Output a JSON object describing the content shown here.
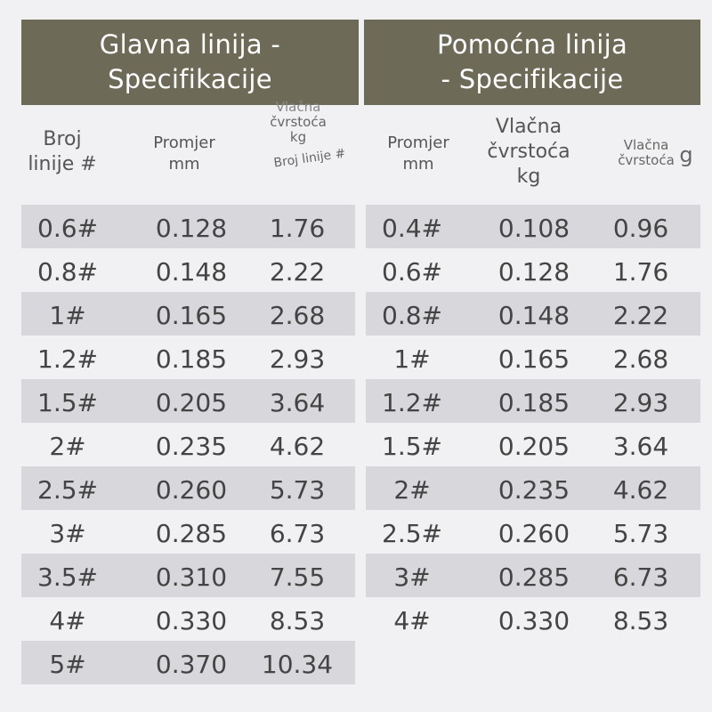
{
  "main_table": {
    "title_line1": "Glavna linija -",
    "title_line2": "Specifikacije",
    "headers": {
      "line_no": [
        "Broj",
        "linije #"
      ],
      "diameter": [
        "Promjer",
        "mm"
      ],
      "strength": [
        "Vlačna",
        "čvrstoća",
        "kg"
      ],
      "strength_extra": "Broj linije #"
    },
    "rows": [
      {
        "line": "0.6#",
        "diameter": "0.128",
        "strength": "1.76"
      },
      {
        "line": "0.8#",
        "diameter": "0.148",
        "strength": "2.22"
      },
      {
        "line": "1#",
        "diameter": "0.165",
        "strength": "2.68"
      },
      {
        "line": "1.2#",
        "diameter": "0.185",
        "strength": "2.93"
      },
      {
        "line": "1.5#",
        "diameter": "0.205",
        "strength": "3.64"
      },
      {
        "line": "2#",
        "diameter": "0.235",
        "strength": "4.62"
      },
      {
        "line": "2.5#",
        "diameter": "0.260",
        "strength": "5.73"
      },
      {
        "line": "3#",
        "diameter": "0.285",
        "strength": "6.73"
      },
      {
        "line": "3.5#",
        "diameter": "0.310",
        "strength": "7.55"
      },
      {
        "line": "4#",
        "diameter": "0.330",
        "strength": "8.53"
      },
      {
        "line": "5#",
        "diameter": "0.370",
        "strength": "10.34"
      }
    ]
  },
  "aux_table": {
    "title_line1": "Pomoćna linija",
    "title_line2": "- Specifikacije",
    "headers": {
      "diameter": [
        "Promjer",
        "mm"
      ],
      "strength": [
        "Vlačna",
        "čvrstoća",
        "kg"
      ],
      "strength_extra": [
        "Vlačna",
        "čvrstoća"
      ],
      "cut_suffix": "g"
    },
    "rows": [
      {
        "line": "0.4#",
        "diameter": "0.108",
        "strength": "0.96"
      },
      {
        "line": "0.6#",
        "diameter": "0.128",
        "strength": "1.76"
      },
      {
        "line": "0.8#",
        "diameter": "0.148",
        "strength": "2.22"
      },
      {
        "line": "1#",
        "diameter": "0.165",
        "strength": "2.68"
      },
      {
        "line": "1.2#",
        "diameter": "0.185",
        "strength": "2.93"
      },
      {
        "line": "1.5#",
        "diameter": "0.205",
        "strength": "3.64"
      },
      {
        "line": "2#",
        "diameter": "0.235",
        "strength": "4.62"
      },
      {
        "line": "2.5#",
        "diameter": "0.260",
        "strength": "5.73"
      },
      {
        "line": "3#",
        "diameter": "0.285",
        "strength": "6.73"
      },
      {
        "line": "4#",
        "diameter": "0.330",
        "strength": "8.53"
      }
    ]
  },
  "colors": {
    "banner": "#6e6a58",
    "shaded_row": "#d8d8dc",
    "background": "#f1f1f3"
  }
}
